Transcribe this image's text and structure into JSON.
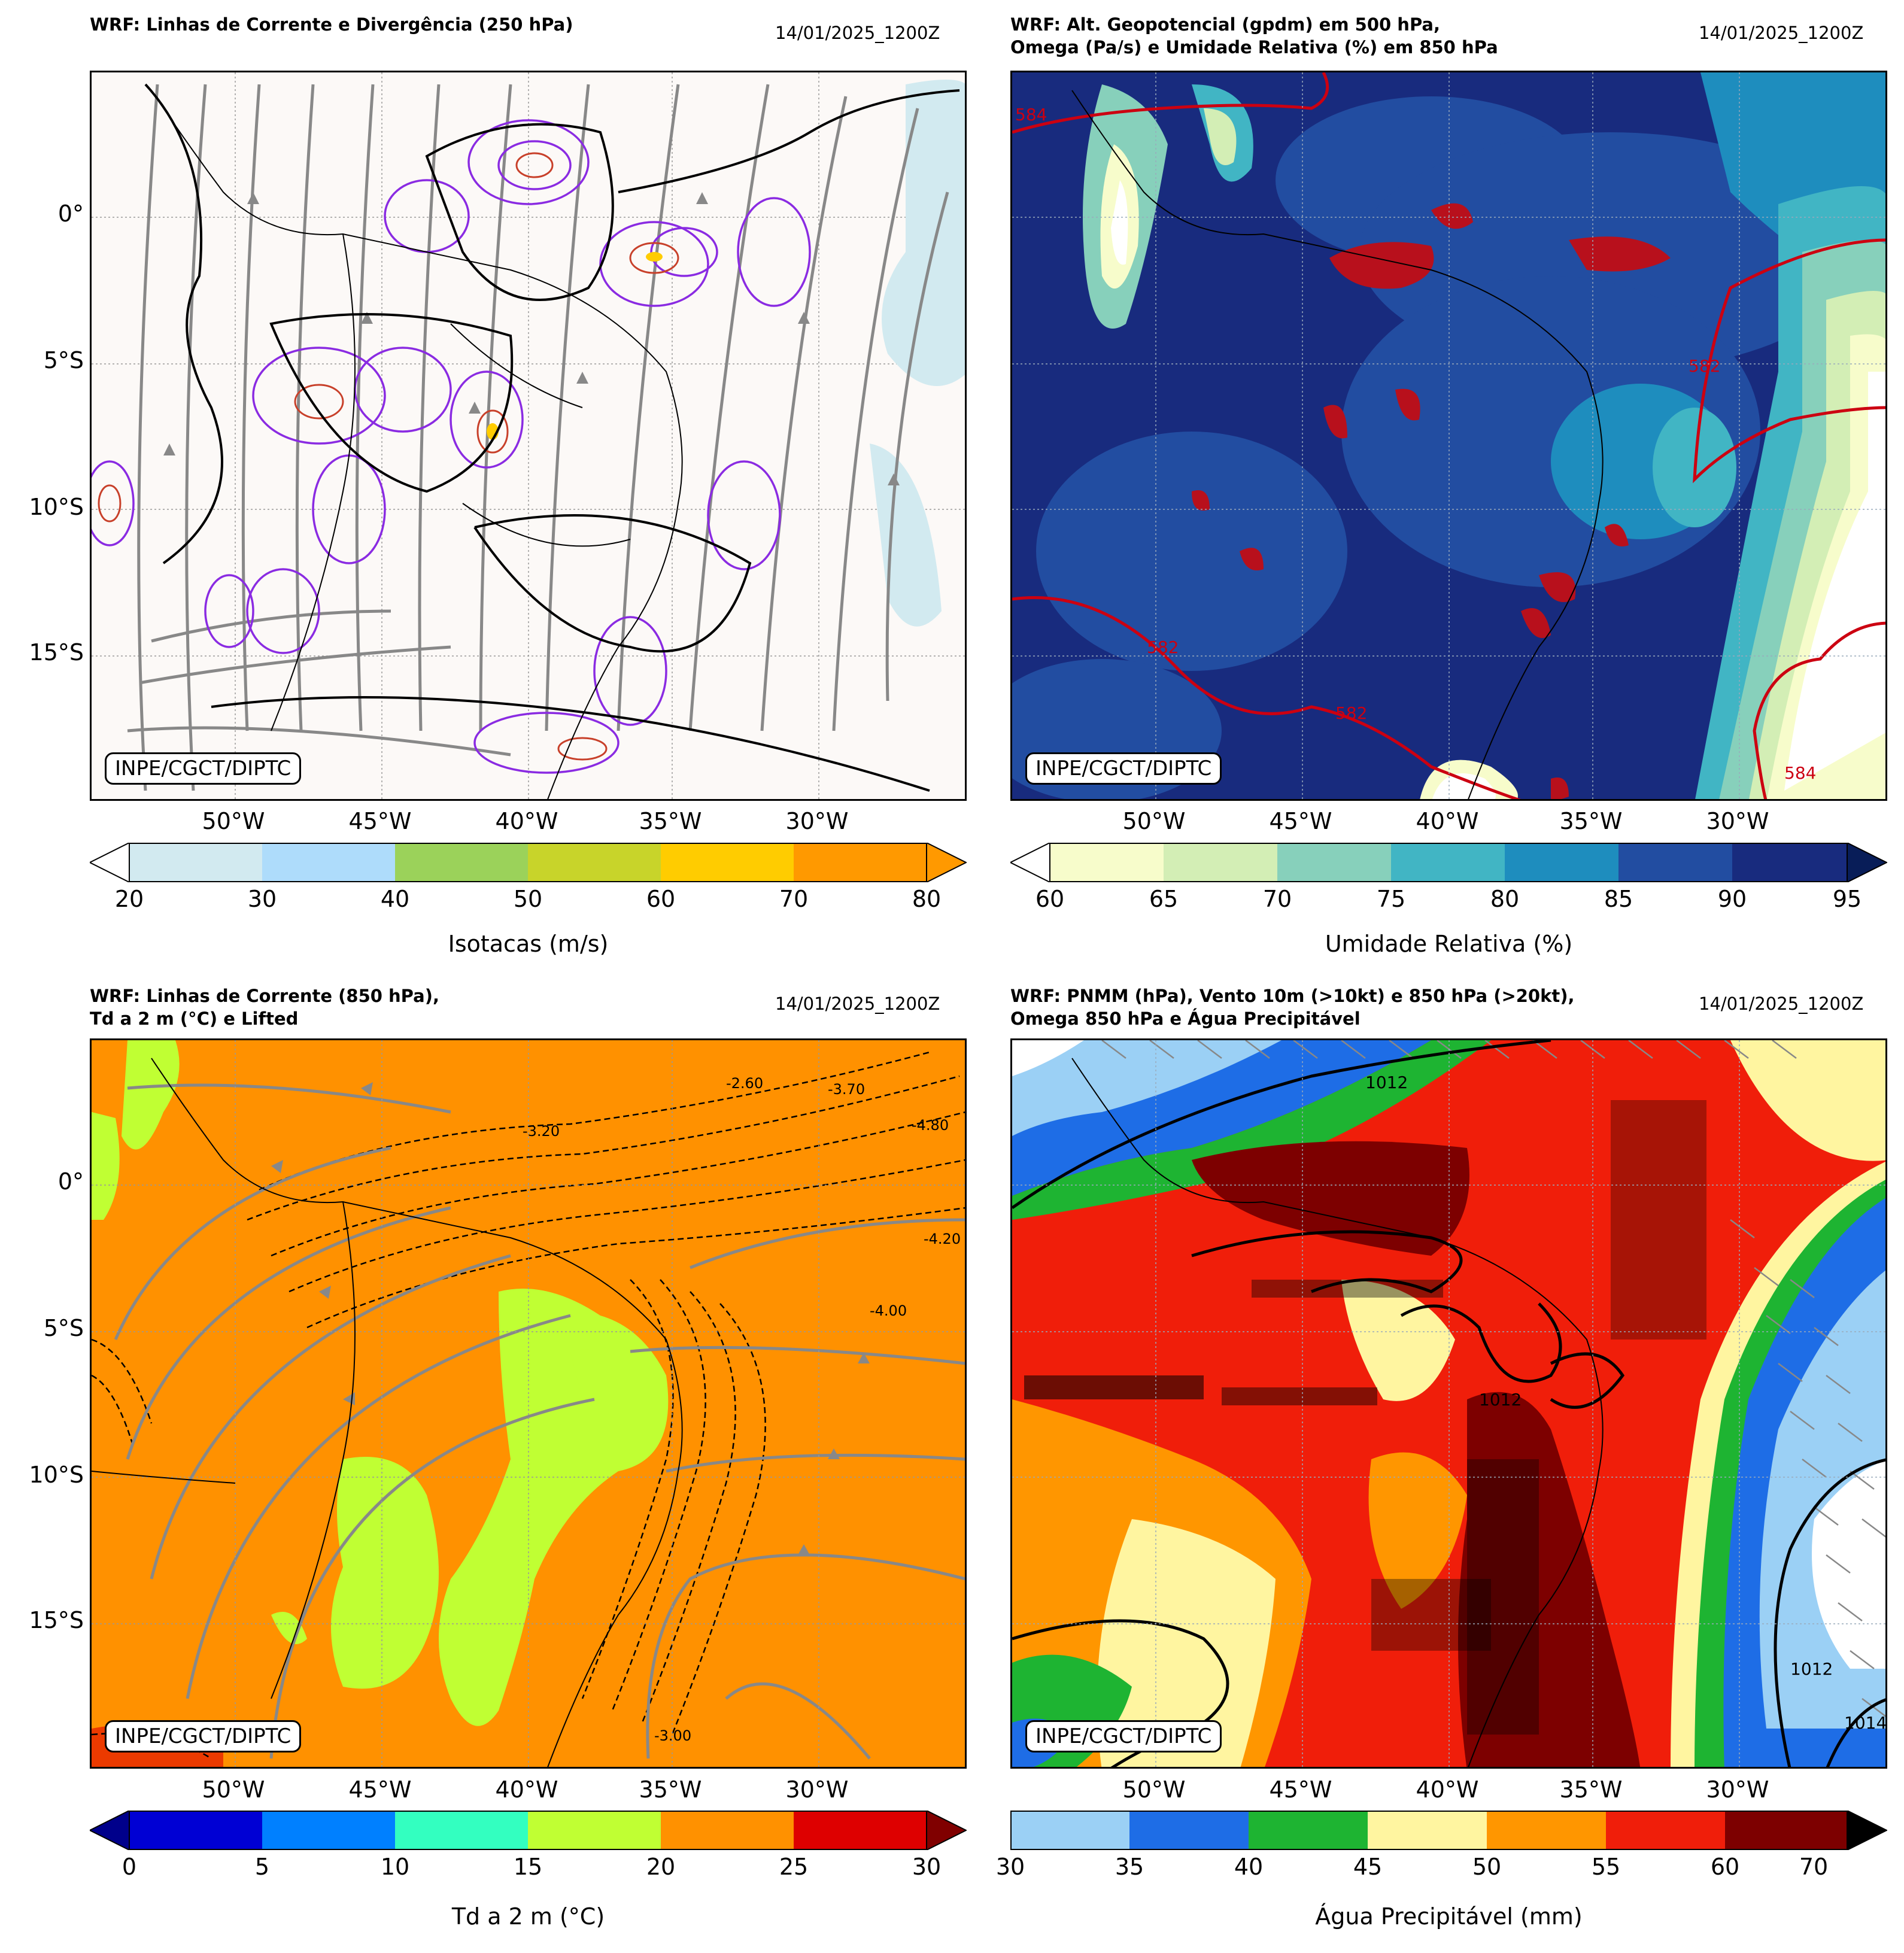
{
  "panels": [
    {
      "title": "WRF: Linhas de Corrente e Divergência (250 hPa)",
      "date": "14/01/2025_1200Z",
      "logo": "INPE/CGCT/DIPTC",
      "lat_ticks": [
        "0°",
        "5°S",
        "10°S",
        "15°S"
      ],
      "lon_ticks": [
        "50°W",
        "45°W",
        "40°W",
        "35°W",
        "30°W"
      ],
      "colorbar": {
        "label": "Isotacas (m/s)",
        "ticks": [
          "20",
          "30",
          "40",
          "50",
          "60",
          "70",
          "80"
        ],
        "colors": [
          "#d2eaf0",
          "#aedcfb",
          "#9bd25a",
          "#c8d42a",
          "#ffcc00",
          "#ff9900"
        ],
        "extend_low": "#ffffff",
        "extend_high": "#ff9900"
      },
      "background": "#fcf9f7"
    },
    {
      "title": "WRF: Alt. Geopotencial (gpdm) em 500 hPa,\nOmega (Pa/s) e Umidade Relativa (%) em 850 hPa",
      "date": "14/01/2025_1200Z",
      "logo": "INPE/CGCT/DIPTC",
      "lat_ticks": [
        "0°",
        "5°S",
        "10°S",
        "15°S"
      ],
      "lon_ticks": [
        "50°W",
        "45°W",
        "40°W",
        "35°W",
        "30°W"
      ],
      "contour_labels": [
        "584",
        "582",
        "582",
        "582",
        "584"
      ],
      "colorbar": {
        "label": "Umidade Relativa (%)",
        "ticks": [
          "60",
          "65",
          "70",
          "75",
          "80",
          "85",
          "90",
          "95"
        ],
        "colors": [
          "#f7fccb",
          "#d3eeb5",
          "#87d0bb",
          "#41b5c4",
          "#1e8dbe",
          "#224da1",
          "#182b7e"
        ],
        "extend_low": "#ffffff",
        "extend_high": "#081d58"
      },
      "background": "#182b7e"
    },
    {
      "title": "WRF: Linhas de Corrente (850 hPa),\nTd a 2 m (°C) e Lifted",
      "date": "14/01/2025_1200Z",
      "logo": "INPE/CGCT/DIPTC",
      "lat_ticks": [
        "0°",
        "5°S",
        "10°S",
        "15°S"
      ],
      "lon_ticks": [
        "50°W",
        "45°W",
        "40°W",
        "35°W",
        "30°W"
      ],
      "contour_labels": [
        "-2.60",
        "-3.20",
        "-3.70",
        "-4.80",
        "-4.20",
        "-4.00",
        "-3.00"
      ],
      "colorbar": {
        "label": "Td a 2 m (°C)",
        "ticks": [
          "0",
          "5",
          "10",
          "15",
          "20",
          "25",
          "30"
        ],
        "colors": [
          "#0000d4",
          "#0080ff",
          "#33ffc0",
          "#c0ff33",
          "#ff9100",
          "#de0000"
        ],
        "extend_low": "#00008b",
        "extend_high": "#800000"
      },
      "background": "#ff9100"
    },
    {
      "title": "WRF: PNMM (hPa), Vento 10m (>10kt) e 850 hPa (>20kt),\nOmega 850 hPa e Água Precipitável",
      "date": "14/01/2025_1200Z",
      "logo": "INPE/CGCT/DIPTC",
      "lat_ticks": [
        "0°",
        "5°S",
        "10°S",
        "15°S"
      ],
      "lon_ticks": [
        "50°W",
        "45°W",
        "40°W",
        "35°W",
        "30°W"
      ],
      "contour_labels": [
        "1012",
        "1012",
        "1012",
        "1014"
      ],
      "colorbar": {
        "label": "Água Precipitável (mm)",
        "ticks": [
          "30",
          "35",
          "40",
          "45",
          "50",
          "55",
          "60",
          "70"
        ],
        "colors": [
          "#9bd0f5",
          "#1e6de6",
          "#1eb432",
          "#fff5a0",
          "#ff9600",
          "#f01e0a",
          "#7d0000"
        ],
        "extend_low": null,
        "extend_high": "#000000"
      },
      "background": "#f01e0a"
    }
  ]
}
